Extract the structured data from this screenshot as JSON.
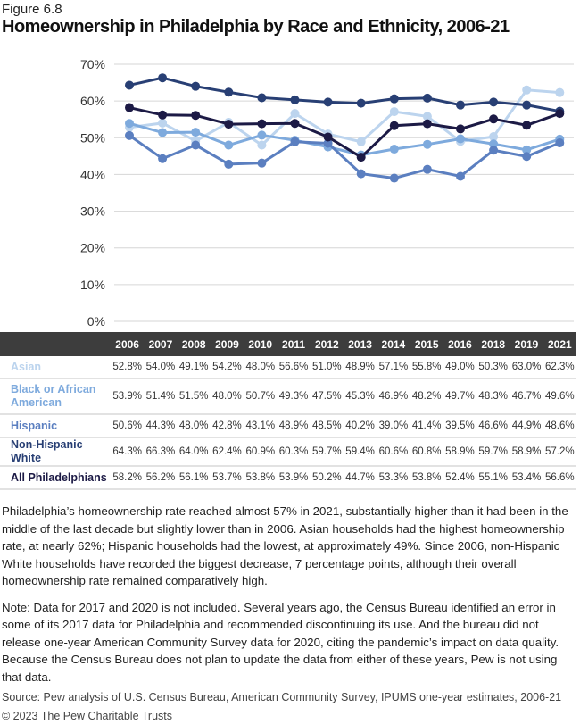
{
  "figure_label": "Figure 6.8",
  "title": "Homeownership in Philadelphia by Race and Ethnicity, 2006-21",
  "chart_data": {
    "type": "line",
    "x": [
      "2006",
      "2007",
      "2008",
      "2009",
      "2010",
      "2011",
      "2012",
      "2013",
      "2014",
      "2015",
      "2016",
      "2018",
      "2019",
      "2021"
    ],
    "ylim": [
      0,
      70
    ],
    "yticks": [
      "0%",
      "10%",
      "20%",
      "30%",
      "40%",
      "50%",
      "60%",
      "70%"
    ],
    "grid": true,
    "series": [
      {
        "name": "Asian",
        "color": "#bcd4ee",
        "values": [
          52.8,
          54.0,
          49.1,
          54.2,
          48.0,
          56.6,
          51.0,
          48.9,
          57.1,
          55.8,
          49.0,
          50.3,
          63.0,
          62.3
        ]
      },
      {
        "name": "Black or African American",
        "color": "#7eaadd",
        "values": [
          53.9,
          51.4,
          51.5,
          48.0,
          50.7,
          49.3,
          47.5,
          45.3,
          46.9,
          48.2,
          49.7,
          48.3,
          46.7,
          49.6
        ]
      },
      {
        "name": "Hispanic",
        "color": "#5b7fc0",
        "values": [
          50.6,
          44.3,
          48.0,
          42.8,
          43.1,
          48.9,
          48.5,
          40.2,
          39.0,
          41.4,
          39.5,
          46.6,
          44.9,
          48.6
        ]
      },
      {
        "name": "Non-Hispanic White",
        "color": "#283f74",
        "values": [
          64.3,
          66.3,
          64.0,
          62.4,
          60.9,
          60.3,
          59.7,
          59.4,
          60.6,
          60.8,
          58.9,
          59.7,
          58.9,
          57.2
        ]
      },
      {
        "name": "All Philadelphians",
        "color": "#1c1a45",
        "values": [
          58.2,
          56.2,
          56.1,
          53.7,
          53.8,
          53.9,
          50.2,
          44.7,
          53.3,
          53.8,
          52.4,
          55.1,
          53.4,
          56.6
        ]
      }
    ]
  },
  "body_text": "Philadelphia’s homeownership rate reached almost 57% in 2021, substantially higher than it had been in the middle of the last decade but slightly lower than in 2006. Asian households had the highest homeownership rate, at nearly 62%; Hispanic households had the lowest, at approximately 49%. Since 2006, non-Hispanic White households have recorded the biggest decrease, 7 percentage points, although their overall homeownership rate remained comparatively high.",
  "note": "Note: Data for 2017 and 2020 is not included. Several years ago, the Census Bureau identified an error in some of its 2017 data for Philadelphia and recommended discontinuing its use. And the bureau did not release one-year American Community Survey data for 2020, citing the pandemic’s impact on data quality. Because the Census Bureau does not plan to update the data from either of these years, Pew is not using that data.",
  "source": "Source: Pew analysis of U.S. Census Bureau, American Community Survey, IPUMS one-year estimates, 2006-21",
  "copyright": "© 2023 The Pew Charitable Trusts"
}
